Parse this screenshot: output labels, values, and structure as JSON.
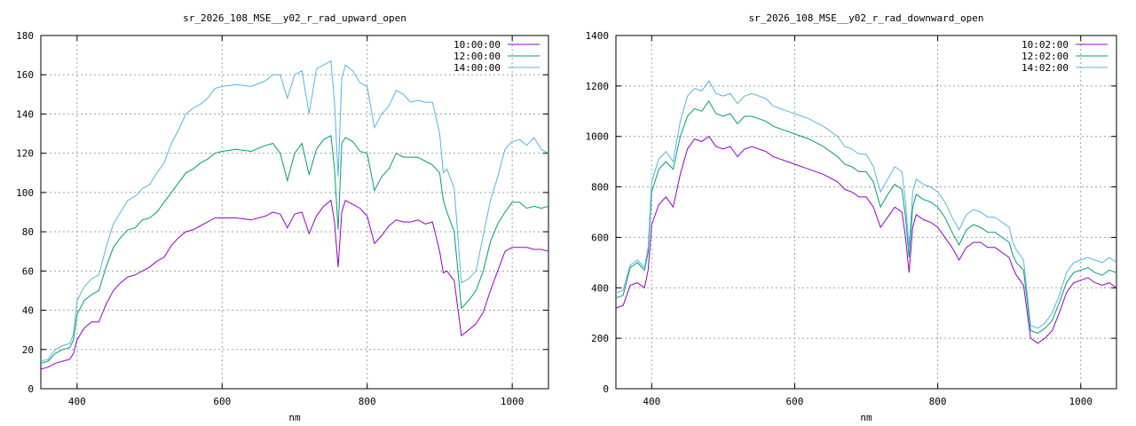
{
  "chart_data": [
    {
      "type": "line",
      "title": "sr_2026_108_MSE__y02_r_rad_upward_open",
      "xlabel": "nm",
      "ylabel": "",
      "xlim": [
        350,
        1050
      ],
      "ylim": [
        0,
        180
      ],
      "xticks": [
        400,
        600,
        800,
        1000
      ],
      "yticks": [
        0,
        20,
        40,
        60,
        80,
        100,
        120,
        140,
        160,
        180
      ],
      "grid": true,
      "legend": "top-right",
      "series": [
        {
          "name": "10:00:00",
          "color": "#9400d3",
          "x": [
            350,
            360,
            370,
            380,
            390,
            395,
            400,
            410,
            420,
            430,
            440,
            450,
            460,
            470,
            480,
            490,
            500,
            510,
            520,
            530,
            540,
            550,
            560,
            570,
            580,
            590,
            600,
            620,
            640,
            660,
            670,
            680,
            690,
            700,
            710,
            720,
            730,
            740,
            750,
            755,
            760,
            765,
            770,
            780,
            790,
            800,
            810,
            820,
            830,
            840,
            850,
            860,
            870,
            880,
            890,
            900,
            905,
            910,
            920,
            930,
            940,
            950,
            960,
            970,
            980,
            990,
            1000,
            1010,
            1020,
            1030,
            1040,
            1050
          ],
          "y": [
            10,
            11,
            13,
            14,
            15,
            18,
            25,
            31,
            34,
            34,
            43,
            50,
            54,
            57,
            58,
            60,
            62,
            65,
            67,
            73,
            77,
            80,
            81,
            83,
            85,
            87,
            87,
            87,
            86,
            88,
            90,
            89,
            82,
            89,
            90,
            79,
            88,
            93,
            96,
            85,
            62,
            90,
            96,
            94,
            92,
            88,
            74,
            78,
            83,
            86,
            85,
            85,
            86,
            84,
            85,
            70,
            59,
            60,
            55,
            27,
            30,
            33,
            39,
            50,
            60,
            70,
            72,
            72,
            72,
            71,
            71,
            70
          ]
        },
        {
          "name": "12:00:00",
          "color": "#009e73",
          "x": [
            350,
            360,
            370,
            380,
            390,
            395,
            400,
            410,
            420,
            430,
            440,
            450,
            460,
            470,
            480,
            490,
            500,
            510,
            520,
            530,
            540,
            550,
            560,
            570,
            580,
            590,
            600,
            620,
            640,
            660,
            670,
            680,
            690,
            700,
            710,
            720,
            730,
            740,
            750,
            755,
            760,
            765,
            770,
            780,
            790,
            800,
            810,
            820,
            830,
            840,
            850,
            860,
            870,
            880,
            890,
            900,
            905,
            910,
            920,
            930,
            940,
            950,
            960,
            970,
            980,
            990,
            1000,
            1010,
            1020,
            1030,
            1040,
            1050
          ],
          "y": [
            13,
            14,
            18,
            20,
            21,
            25,
            38,
            45,
            48,
            50,
            62,
            72,
            77,
            81,
            82,
            86,
            87,
            90,
            95,
            100,
            105,
            110,
            112,
            115,
            117,
            120,
            121,
            122,
            121,
            124,
            125,
            120,
            106,
            120,
            125,
            109,
            122,
            127,
            129,
            112,
            81,
            125,
            128,
            126,
            121,
            120,
            101,
            108,
            112,
            120,
            118,
            118,
            118,
            116,
            114,
            110,
            96,
            90,
            80,
            41,
            45,
            50,
            60,
            75,
            84,
            90,
            95,
            95,
            92,
            93,
            92,
            93
          ]
        },
        {
          "name": "14:00:00",
          "color": "#56b4e9",
          "x": [
            350,
            360,
            370,
            380,
            390,
            395,
            400,
            410,
            420,
            430,
            440,
            450,
            460,
            470,
            480,
            490,
            500,
            510,
            520,
            530,
            540,
            550,
            560,
            570,
            580,
            590,
            600,
            620,
            640,
            660,
            670,
            680,
            690,
            700,
            710,
            720,
            730,
            740,
            750,
            755,
            760,
            765,
            770,
            780,
            790,
            800,
            810,
            820,
            830,
            840,
            850,
            860,
            870,
            880,
            890,
            900,
            905,
            910,
            920,
            930,
            940,
            950,
            960,
            970,
            980,
            990,
            1000,
            1010,
            1020,
            1030,
            1040,
            1050
          ],
          "y": [
            14,
            15,
            20,
            22,
            23,
            28,
            45,
            52,
            56,
            58,
            72,
            84,
            90,
            96,
            98,
            102,
            104,
            110,
            115,
            125,
            132,
            140,
            143,
            145,
            148,
            153,
            154,
            155,
            154,
            157,
            160,
            160,
            148,
            160,
            162,
            140,
            163,
            165,
            167,
            146,
            108,
            158,
            165,
            162,
            156,
            154,
            133,
            140,
            144,
            152,
            150,
            146,
            147,
            146,
            146,
            130,
            110,
            112,
            102,
            54,
            56,
            60,
            78,
            96,
            108,
            122,
            126,
            127,
            124,
            128,
            122,
            120
          ]
        }
      ]
    },
    {
      "type": "line",
      "title": "sr_2026_108_MSE__y02_r_rad_downward_open",
      "xlabel": "nm",
      "ylabel": "",
      "xlim": [
        350,
        1050
      ],
      "ylim": [
        0,
        1400
      ],
      "xticks": [
        400,
        600,
        800,
        1000
      ],
      "yticks": [
        0,
        200,
        400,
        600,
        800,
        1000,
        1200,
        1400
      ],
      "grid": true,
      "legend": "top-right",
      "series": [
        {
          "name": "10:02:00",
          "color": "#9400d3",
          "x": [
            350,
            360,
            370,
            380,
            390,
            395,
            400,
            410,
            420,
            430,
            440,
            450,
            460,
            470,
            480,
            490,
            500,
            510,
            520,
            530,
            540,
            550,
            560,
            570,
            580,
            590,
            600,
            620,
            640,
            660,
            670,
            680,
            690,
            700,
            710,
            720,
            730,
            740,
            750,
            755,
            760,
            765,
            770,
            780,
            790,
            800,
            810,
            820,
            830,
            840,
            850,
            860,
            870,
            880,
            890,
            900,
            905,
            910,
            920,
            930,
            940,
            950,
            960,
            970,
            980,
            990,
            1000,
            1010,
            1020,
            1030,
            1040,
            1050
          ],
          "y": [
            320,
            330,
            410,
            420,
            400,
            470,
            650,
            730,
            760,
            720,
            850,
            950,
            990,
            980,
            1000,
            960,
            950,
            960,
            920,
            950,
            960,
            950,
            940,
            920,
            910,
            900,
            890,
            870,
            850,
            820,
            790,
            780,
            760,
            760,
            720,
            640,
            680,
            720,
            700,
            600,
            460,
            640,
            690,
            670,
            660,
            640,
            600,
            560,
            510,
            560,
            580,
            580,
            560,
            560,
            540,
            520,
            480,
            450,
            410,
            200,
            180,
            200,
            230,
            300,
            380,
            420,
            430,
            440,
            420,
            410,
            420,
            400
          ]
        },
        {
          "name": "12:02:00",
          "color": "#009e73",
          "x": [
            350,
            360,
            370,
            380,
            390,
            395,
            400,
            410,
            420,
            430,
            440,
            450,
            460,
            470,
            480,
            490,
            500,
            510,
            520,
            530,
            540,
            550,
            560,
            570,
            580,
            590,
            600,
            620,
            640,
            660,
            670,
            680,
            690,
            700,
            710,
            720,
            730,
            740,
            750,
            755,
            760,
            765,
            770,
            780,
            790,
            800,
            810,
            820,
            830,
            840,
            850,
            860,
            870,
            880,
            890,
            900,
            905,
            910,
            920,
            930,
            940,
            950,
            960,
            970,
            980,
            990,
            1000,
            1010,
            1020,
            1030,
            1040,
            1050
          ],
          "y": [
            360,
            370,
            480,
            500,
            470,
            540,
            780,
            870,
            900,
            870,
            1000,
            1080,
            1110,
            1100,
            1140,
            1090,
            1080,
            1090,
            1050,
            1080,
            1080,
            1070,
            1060,
            1040,
            1030,
            1020,
            1010,
            990,
            960,
            920,
            890,
            880,
            860,
            860,
            820,
            720,
            770,
            810,
            790,
            680,
            520,
            720,
            770,
            750,
            740,
            720,
            680,
            620,
            570,
            630,
            650,
            640,
            620,
            620,
            600,
            580,
            530,
            500,
            470,
            230,
            220,
            240,
            270,
            340,
            420,
            460,
            470,
            480,
            460,
            450,
            470,
            460
          ]
        },
        {
          "name": "14:02:00",
          "color": "#56b4e9",
          "x": [
            350,
            360,
            370,
            380,
            390,
            395,
            400,
            410,
            420,
            430,
            440,
            450,
            460,
            470,
            480,
            490,
            500,
            510,
            520,
            530,
            540,
            550,
            560,
            570,
            580,
            590,
            600,
            620,
            640,
            660,
            670,
            680,
            690,
            700,
            710,
            720,
            730,
            740,
            750,
            755,
            760,
            765,
            770,
            780,
            790,
            800,
            810,
            820,
            830,
            840,
            850,
            860,
            870,
            880,
            890,
            900,
            905,
            910,
            920,
            930,
            940,
            950,
            960,
            970,
            980,
            990,
            1000,
            1010,
            1020,
            1030,
            1040,
            1050
          ],
          "y": [
            380,
            390,
            490,
            510,
            480,
            560,
            820,
            910,
            940,
            900,
            1060,
            1160,
            1190,
            1180,
            1220,
            1170,
            1160,
            1170,
            1130,
            1160,
            1170,
            1160,
            1150,
            1120,
            1110,
            1100,
            1090,
            1070,
            1040,
            1000,
            960,
            950,
            930,
            930,
            880,
            780,
            830,
            880,
            860,
            740,
            560,
            780,
            830,
            810,
            800,
            780,
            740,
            680,
            630,
            690,
            710,
            700,
            680,
            680,
            660,
            640,
            580,
            550,
            510,
            250,
            240,
            260,
            300,
            370,
            460,
            500,
            510,
            520,
            510,
            500,
            520,
            500
          ]
        }
      ]
    }
  ]
}
